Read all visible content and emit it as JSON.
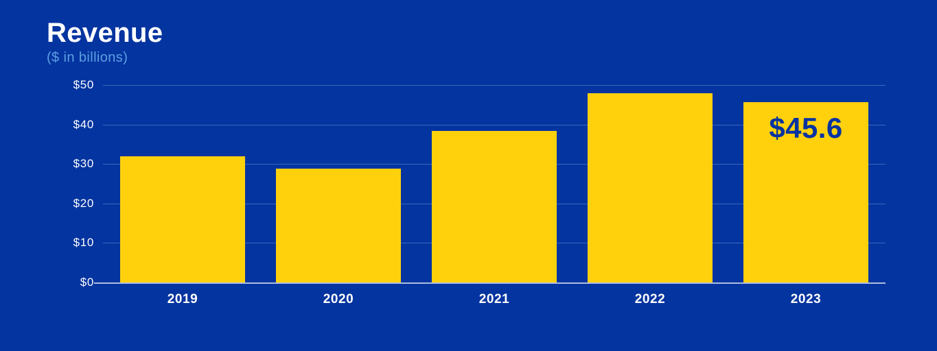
{
  "header": {
    "title": "Revenue",
    "subtitle": "($ in billions)"
  },
  "colors": {
    "background": "#0434A0",
    "bar": "#FFD10D",
    "title": "#FFFFFF",
    "subtitle": "#5BA0E0",
    "axis_label": "#FFFFFF",
    "bar_label": "#0533A1",
    "gridline": "rgba(125,170,225,0.45)",
    "baseline": "rgba(205,215,235,0.85)"
  },
  "chart_data": {
    "type": "bar",
    "title": "Revenue",
    "subtitle": "($ in billions)",
    "xlabel": "",
    "ylabel": "$ in billions",
    "categories": [
      "2019",
      "2020",
      "2021",
      "2022",
      "2023"
    ],
    "values": [
      32.0,
      28.8,
      38.4,
      47.9,
      45.6
    ],
    "bar_labels": [
      "",
      "",
      "",
      "",
      "$45.6"
    ],
    "ylim": [
      0,
      50
    ],
    "ytick_labels": [
      "$50",
      "$40",
      "$30",
      "$20",
      "$10",
      "$0"
    ],
    "ytick_values": [
      50,
      40,
      30,
      20,
      10,
      0
    ],
    "grid": true,
    "legend": false
  }
}
